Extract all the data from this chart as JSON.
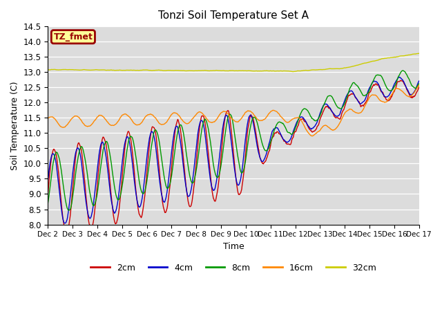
{
  "title": "Tonzi Soil Temperature Set A",
  "xlabel": "Time",
  "ylabel": "Soil Temperature (C)",
  "ylim": [
    8.0,
    14.5
  ],
  "label_text": "TZ_fmet",
  "label_bg": "#FFFF99",
  "label_border": "#990000",
  "label_text_color": "#990000",
  "bg_color": "#DCDCDC",
  "legend_entries": [
    "2cm",
    "4cm",
    "8cm",
    "16cm",
    "32cm"
  ],
  "line_colors": [
    "#CC0000",
    "#0000CC",
    "#009900",
    "#FF8800",
    "#CCCC00"
  ],
  "xtick_labels": [
    "Dec 2",
    "Dec 3",
    "Dec 4",
    "Dec 5",
    "Dec 6",
    "Dec 7",
    "Dec 8",
    "Dec 9",
    "Dec 10",
    "Dec 11",
    "Dec 12",
    "Dec 13",
    "Dec 14",
    "Dec 15",
    "Dec 16",
    "Dec 17"
  ],
  "n_points": 721,
  "days": 15
}
